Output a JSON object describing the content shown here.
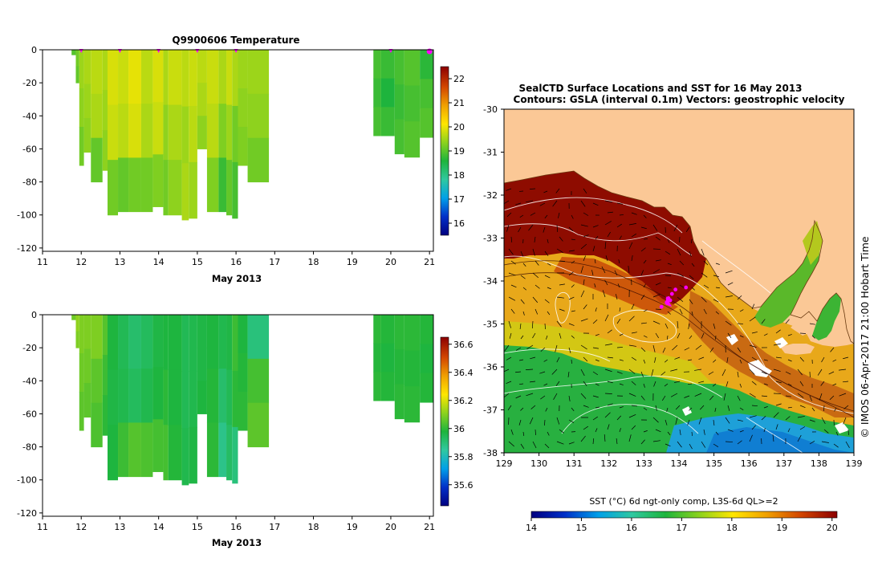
{
  "chart_data": [
    {
      "type": "heatmap",
      "title": "Q9900606  Temperature",
      "variable": "temperature",
      "xlabel": "May 2013",
      "ylabel": "",
      "xlim": [
        11,
        21.1
      ],
      "ylim": [
        -122,
        0
      ],
      "x_ticks": [
        "11",
        "12",
        "13",
        "14",
        "15",
        "16",
        "17",
        "18",
        "19",
        "20",
        "21"
      ],
      "y_ticks": [
        "0",
        "-20",
        "-40",
        "-60",
        "-80",
        "-100",
        "-120"
      ],
      "colorbar": {
        "min": 15.5,
        "max": 22.5,
        "ticks": [
          "16",
          "17",
          "18",
          "19",
          "20",
          "21",
          "22"
        ]
      },
      "profile_markers_x": [
        12,
        13,
        14,
        15,
        16,
        20,
        21
      ],
      "profiles": [
        {
          "x0": 11.75,
          "x1": 11.86,
          "depth": -3,
          "values": [
            19.0
          ]
        },
        {
          "x0": 11.86,
          "x1": 11.95,
          "depth": -20,
          "values": [
            19.2,
            19.1
          ]
        },
        {
          "x0": 11.95,
          "x1": 12.07,
          "depth": -70,
          "values": [
            19.5,
            19.4,
            19.2
          ]
        },
        {
          "x0": 12.07,
          "x1": 12.25,
          "depth": -62,
          "values": [
            19.6,
            19.5,
            19.4
          ]
        },
        {
          "x0": 12.25,
          "x1": 12.55,
          "depth": -80,
          "values": [
            19.7,
            19.6,
            19.1
          ]
        },
        {
          "x0": 12.55,
          "x1": 12.68,
          "depth": -73,
          "values": [
            19.6,
            19.5,
            19.4
          ]
        },
        {
          "x0": 12.68,
          "x1": 12.95,
          "depth": -100,
          "values": [
            19.9,
            19.8,
            19.2
          ]
        },
        {
          "x0": 12.95,
          "x1": 13.22,
          "depth": -98,
          "values": [
            19.8,
            19.7,
            19.1
          ]
        },
        {
          "x0": 13.22,
          "x1": 13.55,
          "depth": -98,
          "values": [
            20.0,
            19.9,
            19.2
          ]
        },
        {
          "x0": 13.55,
          "x1": 13.85,
          "depth": -98,
          "values": [
            19.7,
            19.6,
            19.2
          ]
        },
        {
          "x0": 13.85,
          "x1": 14.12,
          "depth": -95,
          "values": [
            19.9,
            19.8,
            19.3
          ]
        },
        {
          "x0": 14.12,
          "x1": 14.25,
          "depth": -100,
          "values": [
            19.6,
            19.4,
            19.2
          ]
        },
        {
          "x0": 14.25,
          "x1": 14.6,
          "depth": -100,
          "values": [
            19.8,
            19.6,
            19.4
          ]
        },
        {
          "x0": 14.6,
          "x1": 14.78,
          "depth": -103,
          "values": [
            19.7,
            19.5,
            19.6
          ]
        },
        {
          "x0": 14.78,
          "x1": 15.0,
          "depth": -102,
          "values": [
            19.8,
            19.7,
            19.5
          ]
        },
        {
          "x0": 15.0,
          "x1": 15.25,
          "depth": -60,
          "values": [
            19.7,
            19.6,
            19.4
          ]
        },
        {
          "x0": 15.25,
          "x1": 15.55,
          "depth": -98,
          "values": [
            19.8,
            19.7,
            19.3
          ]
        },
        {
          "x0": 15.55,
          "x1": 15.75,
          "depth": -98,
          "values": [
            19.6,
            19.3,
            18.8
          ]
        },
        {
          "x0": 15.75,
          "x1": 15.9,
          "depth": -100,
          "values": [
            19.8,
            19.5,
            19.1
          ]
        },
        {
          "x0": 15.9,
          "x1": 16.05,
          "depth": -102,
          "values": [
            19.6,
            19.2,
            18.9
          ]
        },
        {
          "x0": 16.05,
          "x1": 16.3,
          "depth": -70,
          "values": [
            19.5,
            19.4,
            19.3
          ]
        },
        {
          "x0": 16.3,
          "x1": 16.85,
          "depth": -80,
          "values": [
            19.5,
            19.4,
            19.2
          ]
        },
        {
          "x0": 19.55,
          "x1": 19.75,
          "depth": -52,
          "values": [
            18.9,
            18.8,
            18.9
          ]
        },
        {
          "x0": 19.75,
          "x1": 20.1,
          "depth": -52,
          "values": [
            18.8,
            18.6,
            18.8
          ]
        },
        {
          "x0": 20.1,
          "x1": 20.35,
          "depth": -63,
          "values": [
            18.9,
            18.8,
            18.9
          ]
        },
        {
          "x0": 20.35,
          "x1": 20.75,
          "depth": -65,
          "values": [
            19.0,
            18.9,
            19.0
          ]
        },
        {
          "x0": 20.75,
          "x1": 21.1,
          "depth": -53,
          "values": [
            18.7,
            18.9,
            19.0
          ]
        }
      ]
    },
    {
      "type": "heatmap",
      "title": "",
      "variable": "salinity",
      "xlabel": "May 2013",
      "ylabel": "",
      "xlim": [
        11,
        21.1
      ],
      "ylim": [
        -122,
        0
      ],
      "x_ticks": [
        "11",
        "12",
        "13",
        "14",
        "15",
        "16",
        "17",
        "18",
        "19",
        "20",
        "21"
      ],
      "y_ticks": [
        "0",
        "-20",
        "-40",
        "-60",
        "-80",
        "-100",
        "-120"
      ],
      "colorbar": {
        "min": 35.45,
        "max": 36.65,
        "ticks": [
          "35.6",
          "35.8",
          "36",
          "36.2",
          "36.4",
          "36.6"
        ]
      },
      "profiles": [
        {
          "x0": 11.75,
          "x1": 11.86,
          "depth": -3,
          "values": [
            36.08
          ]
        },
        {
          "x0": 11.86,
          "x1": 11.95,
          "depth": -20,
          "values": [
            36.12,
            36.1
          ]
        },
        {
          "x0": 11.95,
          "x1": 12.07,
          "depth": -70,
          "values": [
            36.1,
            36.08,
            36.06
          ]
        },
        {
          "x0": 12.07,
          "x1": 12.25,
          "depth": -62,
          "values": [
            36.1,
            36.08,
            36.06
          ]
        },
        {
          "x0": 12.25,
          "x1": 12.55,
          "depth": -80,
          "values": [
            36.1,
            36.06,
            36.04
          ]
        },
        {
          "x0": 12.55,
          "x1": 12.68,
          "depth": -73,
          "values": [
            36.05,
            36.02,
            36.0
          ]
        },
        {
          "x0": 12.68,
          "x1": 12.95,
          "depth": -100,
          "values": [
            35.98,
            35.97,
            35.98
          ]
        },
        {
          "x0": 12.95,
          "x1": 13.22,
          "depth": -98,
          "values": [
            35.95,
            35.96,
            36.02
          ]
        },
        {
          "x0": 13.22,
          "x1": 13.55,
          "depth": -98,
          "values": [
            35.92,
            35.94,
            36.05
          ]
        },
        {
          "x0": 13.55,
          "x1": 13.85,
          "depth": -98,
          "values": [
            35.94,
            35.96,
            36.04
          ]
        },
        {
          "x0": 13.85,
          "x1": 14.12,
          "depth": -95,
          "values": [
            35.97,
            35.98,
            36.03
          ]
        },
        {
          "x0": 14.12,
          "x1": 14.25,
          "depth": -100,
          "values": [
            35.98,
            36.0,
            36.03
          ]
        },
        {
          "x0": 14.25,
          "x1": 14.6,
          "depth": -100,
          "values": [
            35.98,
            35.98,
            35.99
          ]
        },
        {
          "x0": 14.6,
          "x1": 14.78,
          "depth": -103,
          "values": [
            35.95,
            35.95,
            35.96
          ]
        },
        {
          "x0": 14.78,
          "x1": 15.0,
          "depth": -102,
          "values": [
            35.96,
            35.96,
            35.97
          ]
        },
        {
          "x0": 15.0,
          "x1": 15.25,
          "depth": -60,
          "values": [
            35.97,
            35.97,
            35.98
          ]
        },
        {
          "x0": 15.25,
          "x1": 15.55,
          "depth": -98,
          "values": [
            35.98,
            35.99,
            36.0
          ]
        },
        {
          "x0": 15.55,
          "x1": 15.75,
          "depth": -98,
          "values": [
            35.96,
            35.92,
            35.88
          ]
        },
        {
          "x0": 15.75,
          "x1": 15.9,
          "depth": -100,
          "values": [
            35.97,
            35.95,
            35.93
          ]
        },
        {
          "x0": 15.9,
          "x1": 16.05,
          "depth": -102,
          "values": [
            36.02,
            36.0,
            35.9
          ]
        },
        {
          "x0": 16.05,
          "x1": 16.3,
          "depth": -70,
          "values": [
            35.98,
            35.99,
            36.0
          ]
        },
        {
          "x0": 16.3,
          "x1": 16.85,
          "depth": -80,
          "values": [
            35.9,
            36.03,
            36.06
          ]
        },
        {
          "x0": 19.55,
          "x1": 19.75,
          "depth": -52,
          "values": [
            36.0,
            35.99,
            36.0
          ]
        },
        {
          "x0": 19.75,
          "x1": 20.1,
          "depth": -52,
          "values": [
            35.99,
            35.98,
            35.99
          ]
        },
        {
          "x0": 20.1,
          "x1": 20.35,
          "depth": -63,
          "values": [
            36.0,
            35.99,
            36.0
          ]
        },
        {
          "x0": 20.35,
          "x1": 20.75,
          "depth": -65,
          "values": [
            36.0,
            35.99,
            36.0
          ]
        },
        {
          "x0": 20.75,
          "x1": 21.1,
          "depth": -53,
          "values": [
            35.99,
            35.98,
            35.99
          ]
        }
      ]
    },
    {
      "type": "heatmap",
      "variable": "SST",
      "title_line1": "SealCTD Surface Locations and SST for 16 May 2013",
      "title_line2": "Contours: GSLA (interval 0.1m) Vectors: geostrophic velocity",
      "xlabel": "",
      "ylabel": "",
      "xlim": [
        129,
        139
      ],
      "ylim": [
        -38,
        -30
      ],
      "x_ticks": [
        "129",
        "130",
        "131",
        "132",
        "133",
        "134",
        "135",
        "136",
        "137",
        "138",
        "139"
      ],
      "y_ticks": [
        "-30",
        "-31",
        "-32",
        "-33",
        "-34",
        "-35",
        "-36",
        "-37",
        "-38"
      ],
      "colorbar": {
        "label": "SST (°C) 6d ngt-only comp, L3S-6d QL>=2",
        "min": 14,
        "max": 20.1,
        "ticks": [
          "14",
          "15",
          "16",
          "17",
          "18",
          "19",
          "20"
        ]
      },
      "side_label": "© IMOS 06-Apr-2017 21:00 Hobart Time",
      "seal_locations": [
        [
          133.7,
          -34.4
        ],
        [
          133.75,
          -34.45
        ],
        [
          133.65,
          -34.5
        ],
        [
          133.9,
          -34.2
        ],
        [
          133.5,
          -34.6
        ],
        [
          134.2,
          -34.15
        ],
        [
          133.8,
          -34.3
        ]
      ]
    }
  ],
  "colors": {
    "land": "#fbc896",
    "marker": "#ff00ff",
    "colormap": [
      "#000080",
      "#0030c8",
      "#00a0e8",
      "#30c8a0",
      "#1eb43c",
      "#8cd21e",
      "#ffe600",
      "#f0a000",
      "#d24600",
      "#8c0000"
    ]
  }
}
